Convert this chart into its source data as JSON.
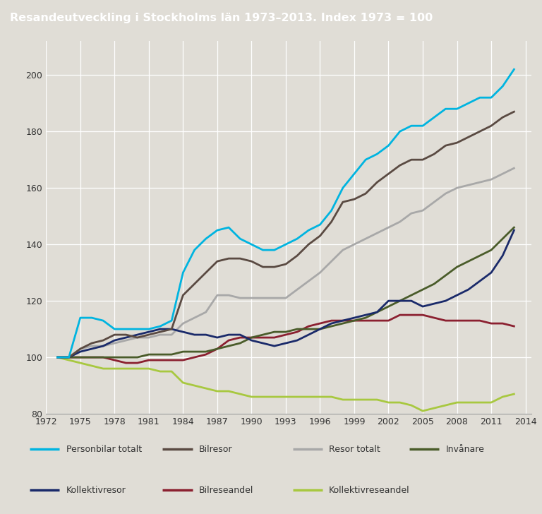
{
  "title": "Resandeutveckling i Stockholms län 1973–2013. Index 1973 = 100",
  "title_bg": "#7a7a7a",
  "plot_bg": "#e0ddd6",
  "fig_bg": "#e0ddd6",
  "ylim": [
    80,
    212
  ],
  "yticks": [
    80,
    100,
    120,
    140,
    160,
    180,
    200
  ],
  "xticks": [
    1972,
    1975,
    1978,
    1981,
    1984,
    1987,
    1990,
    1993,
    1996,
    1999,
    2002,
    2005,
    2008,
    2011,
    2014
  ],
  "series": {
    "Personbilar totalt": {
      "color": "#00b4e0",
      "lw": 2.0,
      "data": {
        "1973": 100,
        "1974": 100,
        "1975": 114,
        "1976": 114,
        "1977": 113,
        "1978": 110,
        "1979": 110,
        "1980": 110,
        "1981": 110,
        "1982": 111,
        "1983": 113,
        "1984": 130,
        "1985": 138,
        "1986": 142,
        "1987": 145,
        "1988": 146,
        "1989": 142,
        "1990": 140,
        "1991": 138,
        "1992": 138,
        "1993": 140,
        "1994": 142,
        "1995": 145,
        "1996": 147,
        "1997": 152,
        "1998": 160,
        "1999": 165,
        "2000": 170,
        "2001": 172,
        "2002": 175,
        "2003": 180,
        "2004": 182,
        "2005": 182,
        "2006": 185,
        "2007": 188,
        "2008": 188,
        "2009": 190,
        "2010": 192,
        "2011": 192,
        "2012": 196,
        "2013": 202
      }
    },
    "Bilresor": {
      "color": "#5a4a42",
      "lw": 2.0,
      "data": {
        "1973": 100,
        "1974": 100,
        "1975": 103,
        "1976": 105,
        "1977": 106,
        "1978": 108,
        "1979": 108,
        "1980": 107,
        "1981": 108,
        "1982": 109,
        "1983": 110,
        "1984": 122,
        "1985": 126,
        "1986": 130,
        "1987": 134,
        "1988": 135,
        "1989": 135,
        "1990": 134,
        "1991": 132,
        "1992": 132,
        "1993": 133,
        "1994": 136,
        "1995": 140,
        "1996": 143,
        "1997": 148,
        "1998": 155,
        "1999": 156,
        "2000": 158,
        "2001": 162,
        "2002": 165,
        "2003": 168,
        "2004": 170,
        "2005": 170,
        "2006": 172,
        "2007": 175,
        "2008": 176,
        "2009": 178,
        "2010": 180,
        "2011": 182,
        "2012": 185,
        "2013": 187
      }
    },
    "Resor totalt": {
      "color": "#a8a8a8",
      "lw": 2.0,
      "data": {
        "1973": 100,
        "1974": 100,
        "1975": 103,
        "1976": 104,
        "1977": 104,
        "1978": 105,
        "1979": 106,
        "1980": 107,
        "1981": 107,
        "1982": 108,
        "1983": 108,
        "1984": 112,
        "1985": 114,
        "1986": 116,
        "1987": 122,
        "1988": 122,
        "1989": 121,
        "1990": 121,
        "1991": 121,
        "1992": 121,
        "1993": 121,
        "1994": 124,
        "1995": 127,
        "1996": 130,
        "1997": 134,
        "1998": 138,
        "1999": 140,
        "2000": 142,
        "2001": 144,
        "2002": 146,
        "2003": 148,
        "2004": 151,
        "2005": 152,
        "2006": 155,
        "2007": 158,
        "2008": 160,
        "2009": 161,
        "2010": 162,
        "2011": 163,
        "2012": 165,
        "2013": 167
      }
    },
    "Invånare": {
      "color": "#4a5c2a",
      "lw": 2.0,
      "data": {
        "1973": 100,
        "1974": 100,
        "1975": 100,
        "1976": 100,
        "1977": 100,
        "1978": 100,
        "1979": 100,
        "1980": 100,
        "1981": 101,
        "1982": 101,
        "1983": 101,
        "1984": 102,
        "1985": 102,
        "1986": 102,
        "1987": 103,
        "1988": 104,
        "1989": 105,
        "1990": 107,
        "1991": 108,
        "1992": 109,
        "1993": 109,
        "1994": 110,
        "1995": 110,
        "1996": 110,
        "1997": 111,
        "1998": 112,
        "1999": 113,
        "2000": 114,
        "2001": 116,
        "2002": 118,
        "2003": 120,
        "2004": 122,
        "2005": 124,
        "2006": 126,
        "2007": 129,
        "2008": 132,
        "2009": 134,
        "2010": 136,
        "2011": 138,
        "2012": 142,
        "2013": 146
      }
    },
    "Kollektivresor": {
      "color": "#1a2a6a",
      "lw": 2.0,
      "data": {
        "1973": 100,
        "1974": 100,
        "1975": 102,
        "1976": 103,
        "1977": 104,
        "1978": 106,
        "1979": 107,
        "1980": 108,
        "1981": 109,
        "1982": 110,
        "1983": 110,
        "1984": 109,
        "1985": 108,
        "1986": 108,
        "1987": 107,
        "1988": 108,
        "1989": 108,
        "1990": 106,
        "1991": 105,
        "1992": 104,
        "1993": 105,
        "1994": 106,
        "1995": 108,
        "1996": 110,
        "1997": 112,
        "1998": 113,
        "1999": 114,
        "2000": 115,
        "2001": 116,
        "2002": 120,
        "2003": 120,
        "2004": 120,
        "2005": 118,
        "2006": 119,
        "2007": 120,
        "2008": 122,
        "2009": 124,
        "2010": 127,
        "2011": 130,
        "2012": 136,
        "2013": 145
      }
    },
    "Bilreseandel": {
      "color": "#8b2030",
      "lw": 2.0,
      "data": {
        "1973": 100,
        "1974": 100,
        "1975": 100,
        "1976": 100,
        "1977": 100,
        "1978": 99,
        "1979": 98,
        "1980": 98,
        "1981": 99,
        "1982": 99,
        "1983": 99,
        "1984": 99,
        "1985": 100,
        "1986": 101,
        "1987": 103,
        "1988": 106,
        "1989": 107,
        "1990": 107,
        "1991": 107,
        "1992": 107,
        "1993": 108,
        "1994": 109,
        "1995": 111,
        "1996": 112,
        "1997": 113,
        "1998": 113,
        "1999": 113,
        "2000": 113,
        "2001": 113,
        "2002": 113,
        "2003": 115,
        "2004": 115,
        "2005": 115,
        "2006": 114,
        "2007": 113,
        "2008": 113,
        "2009": 113,
        "2010": 113,
        "2011": 112,
        "2012": 112,
        "2013": 111
      }
    },
    "Kollektivreseandel": {
      "color": "#a8c840",
      "lw": 2.0,
      "data": {
        "1973": 100,
        "1974": 99,
        "1975": 98,
        "1976": 97,
        "1977": 96,
        "1978": 96,
        "1979": 96,
        "1980": 96,
        "1981": 96,
        "1982": 95,
        "1983": 95,
        "1984": 91,
        "1985": 90,
        "1986": 89,
        "1987": 88,
        "1988": 88,
        "1989": 87,
        "1990": 86,
        "1991": 86,
        "1992": 86,
        "1993": 86,
        "1994": 86,
        "1995": 86,
        "1996": 86,
        "1997": 86,
        "1998": 85,
        "1999": 85,
        "2000": 85,
        "2001": 85,
        "2002": 84,
        "2003": 84,
        "2004": 83,
        "2005": 81,
        "2006": 82,
        "2007": 83,
        "2008": 84,
        "2009": 84,
        "2010": 84,
        "2011": 84,
        "2012": 86,
        "2013": 87
      }
    }
  },
  "legend_order": [
    "Personbilar totalt",
    "Bilresor",
    "Resor totalt",
    "Invånare",
    "Kollektivresor",
    "Bilreseandel",
    "Kollektivreseandel"
  ],
  "grid_color": "#ffffff",
  "text_color": "#333333",
  "title_fontsize": 11.5,
  "tick_fontsize": 9.0
}
